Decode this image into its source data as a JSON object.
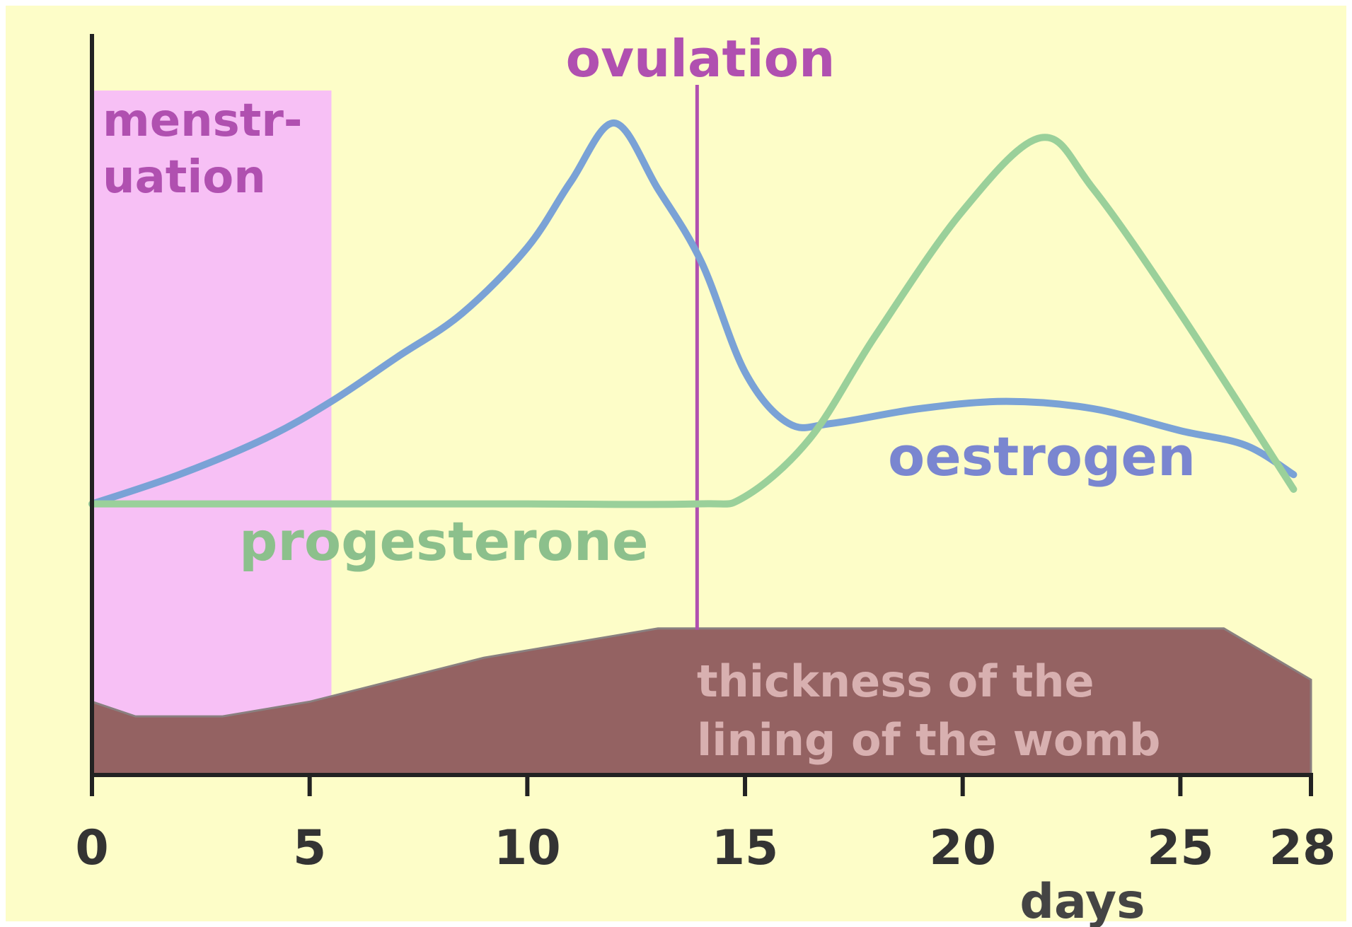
{
  "chart_data": {
    "type": "line",
    "title": "",
    "xlabel": "days",
    "ylabel": "",
    "xlim": [
      0,
      28
    ],
    "ylim": [
      0,
      100
    ],
    "x_ticks": [
      0,
      5,
      10,
      15,
      20,
      25,
      28
    ],
    "x_tick_labels": [
      "0",
      "5",
      "10",
      "15",
      "20",
      "25",
      "28"
    ],
    "grid": false,
    "legend": "none (series labeled directly on chart)",
    "menstruation": {
      "label_line1": "menstr-",
      "label_line2": "uation",
      "x_start": 0,
      "x_end": 5.5,
      "color": "#f7c0f5"
    },
    "ovulation": {
      "label": "ovulation",
      "x": 13.9,
      "color": "#b050b0"
    },
    "series": [
      {
        "name": "oestrogen",
        "color": "#7aa2d6",
        "x": [
          0,
          2,
          4,
          5.5,
          7,
          8.5,
          10,
          11,
          12,
          13,
          14,
          15,
          16,
          17,
          19,
          21,
          23,
          25,
          26.5,
          27.6
        ],
        "y": [
          37,
          41,
          46,
          51,
          57,
          63,
          72,
          81,
          89,
          80,
          70,
          55,
          48,
          48,
          50,
          51,
          50,
          47,
          45,
          41
        ]
      },
      {
        "name": "progesterone",
        "color": "#9ad09a",
        "x": [
          0,
          5,
          10,
          13.9,
          15,
          16.5,
          18,
          20,
          21.8,
          23,
          25,
          27.6
        ],
        "y": [
          37,
          37,
          37,
          37,
          38,
          46,
          60,
          77,
          87,
          80,
          63,
          39
        ]
      }
    ],
    "area": {
      "name_line1": "thickness of the",
      "name_line2": "lining of the womb",
      "color": "#946262",
      "x": [
        0,
        1,
        3,
        5,
        7,
        9,
        11,
        13,
        15,
        17,
        20,
        23,
        26,
        28
      ],
      "y": [
        10,
        8,
        8,
        10,
        13,
        16,
        18,
        20,
        20,
        20,
        20,
        20,
        20,
        13
      ]
    },
    "colors": {
      "background": "#fdfdc8",
      "axis": "#222222",
      "tick_text": "#333333",
      "ovulation_text": "#b050b0",
      "menstruation_text": "#b050b0",
      "area_text": "#d8b0b0"
    }
  }
}
